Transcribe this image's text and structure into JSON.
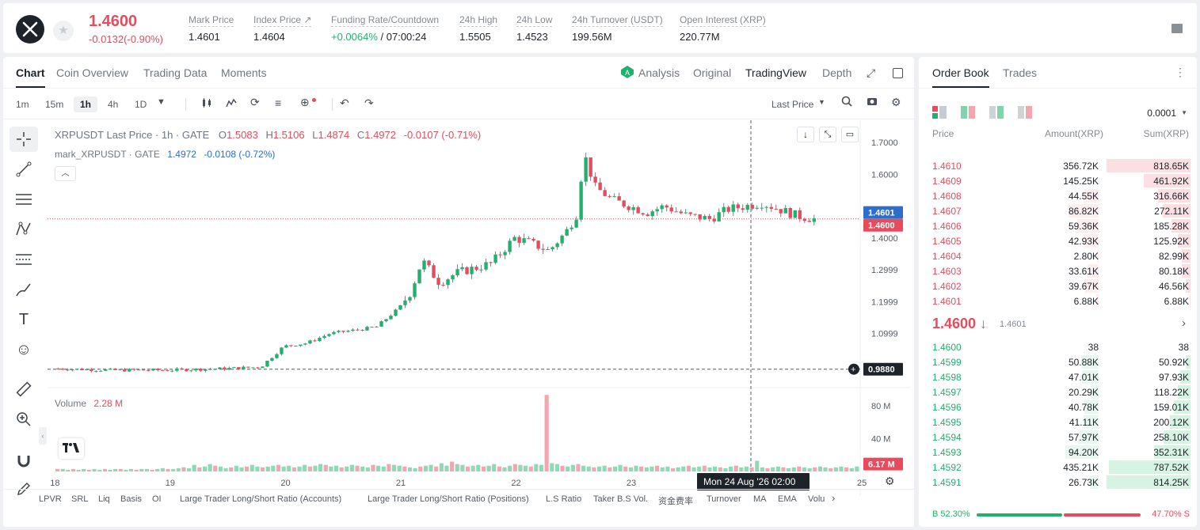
{
  "header": {
    "logo_icon": "xrp-logo-icon",
    "last_price": "1.4600",
    "change": "-0.0132(-0.90%)",
    "stats": [
      {
        "label": "Mark Price",
        "value": "1.4601"
      },
      {
        "label": "Index Price ↗",
        "value": "1.4604"
      },
      {
        "label": "Funding Rate/Countdown",
        "value_green": "+0.0064%",
        "value": " / 07:00:24"
      },
      {
        "label": "24h High",
        "value": "1.5505"
      },
      {
        "label": "24h Low",
        "value": "1.4523"
      },
      {
        "label": "24h Turnover (USDT)",
        "value": "199.56M"
      },
      {
        "label": "Open Interest (XRP)",
        "value": "220.77M"
      }
    ]
  },
  "chart_tabs": [
    "Chart",
    "Coin Overview",
    "Trading Data",
    "Moments"
  ],
  "chart_view_tabs": {
    "analysis": "Analysis",
    "original": "Original",
    "tradingview": "TradingView",
    "depth": "Depth"
  },
  "timeframes": [
    "1m",
    "15m",
    "1h",
    "4h",
    "1D"
  ],
  "price_type": "Last Price",
  "legend": {
    "pair": "XRPUSDT Last Price · 1h · GATE",
    "o_label": "O",
    "o": "1.5083",
    "h_label": "H",
    "h": "1.5106",
    "l_label": "L",
    "l": "1.4874",
    "c_label": "C",
    "c": "1.4972",
    "chg": "-0.0107 (-0.71%)",
    "mark_line": "mark_XRPUSDT · GATE",
    "mark_val": "1.4972",
    "mark_chg": "-0.0108 (-0.72%)",
    "volume_label": "Volume",
    "volume_val": "2.28 M"
  },
  "chart_data": {
    "type": "candlestick",
    "title": "XRPUSDT Last Price · 1h · GATE",
    "y_ticks": [
      "1.7000",
      "1.6000",
      "1.4000",
      "1.2999",
      "1.1999",
      "1.0999"
    ],
    "y_tick_values": [
      1.7,
      1.6,
      1.4,
      1.2999,
      1.1999,
      1.0999
    ],
    "x_ticks": [
      "18",
      "19",
      "20",
      "21",
      "22",
      "23",
      "25"
    ],
    "x_tick_values": [
      18,
      19,
      20,
      21,
      22,
      23,
      25
    ],
    "ylim": [
      0.95,
      1.75
    ],
    "xlim": [
      17.95,
      25
    ],
    "current_price_label": "1.4600",
    "mark_price_label": "1.4601",
    "crosshair_price": "0.9880",
    "crosshair_time": "Mon 24 Aug '26  02:00",
    "volume_ticks": [
      "80 M",
      "40 M"
    ],
    "volume_tick_values": [
      80,
      40
    ],
    "volume_last": "6.17 M",
    "price_path": [
      [
        18.0,
        0.99
      ],
      [
        18.5,
        0.985
      ],
      [
        19.0,
        0.985
      ],
      [
        19.5,
        0.99
      ],
      [
        19.8,
        0.995
      ],
      [
        20.0,
        1.06
      ],
      [
        20.2,
        1.07
      ],
      [
        20.4,
        1.1
      ],
      [
        20.6,
        1.11
      ],
      [
        20.8,
        1.12
      ],
      [
        21.0,
        1.18
      ],
      [
        21.1,
        1.23
      ],
      [
        21.2,
        1.33
      ],
      [
        21.35,
        1.26
      ],
      [
        21.5,
        1.29
      ],
      [
        21.8,
        1.32
      ],
      [
        22.0,
        1.4
      ],
      [
        22.1,
        1.39
      ],
      [
        22.3,
        1.36
      ],
      [
        22.45,
        1.42
      ],
      [
        22.55,
        1.48
      ],
      [
        22.6,
        1.67
      ],
      [
        22.7,
        1.56
      ],
      [
        22.85,
        1.52
      ],
      [
        23.0,
        1.5
      ],
      [
        23.15,
        1.48
      ],
      [
        23.3,
        1.5
      ],
      [
        23.5,
        1.47
      ],
      [
        23.7,
        1.46
      ],
      [
        23.85,
        1.49
      ],
      [
        24.0,
        1.5
      ],
      [
        24.15,
        1.51
      ],
      [
        24.3,
        1.49
      ],
      [
        24.45,
        1.47
      ],
      [
        24.6,
        1.46
      ]
    ],
    "volume_bars": [
      3,
      3,
      2,
      3,
      2,
      3,
      2,
      3,
      2,
      3,
      2,
      3,
      3,
      2,
      3,
      2,
      3,
      3,
      2,
      3,
      4,
      3,
      3,
      4,
      5,
      4,
      8,
      5,
      6,
      9,
      7,
      6,
      4,
      5,
      7,
      5,
      6,
      8,
      6,
      5,
      6,
      7,
      8,
      6,
      7,
      5,
      6,
      8,
      6,
      7,
      9,
      8,
      6,
      7,
      5,
      6,
      8,
      7,
      6,
      5,
      8,
      7,
      6,
      9,
      8,
      7,
      6,
      5,
      4,
      6,
      7,
      8,
      6,
      10,
      7,
      12,
      9,
      8,
      6,
      7,
      8,
      6,
      7,
      9,
      6,
      5,
      7,
      9,
      8,
      7,
      6,
      9,
      8,
      93,
      10,
      9,
      7,
      6,
      8,
      9,
      7,
      6,
      5,
      6,
      7,
      5,
      6,
      8,
      6,
      5,
      7,
      6,
      5,
      6,
      7,
      5,
      6,
      4,
      5,
      6,
      7,
      5,
      6,
      7,
      5,
      6,
      5,
      4,
      6,
      7,
      5,
      6,
      5,
      13,
      5,
      4,
      5,
      6,
      5,
      4,
      5,
      6,
      5,
      4,
      5,
      6,
      5,
      4,
      5,
      6,
      5,
      4,
      6
    ]
  },
  "indicators": [
    "LPVR",
    "SRL",
    "Liq",
    "Basis",
    "OI",
    "Large Trader Long/Short Ratio (Accounts)",
    "Large Trader Long/Short Ratio (Positions)",
    "L.S Ratio",
    "Taker B.S Vol.",
    "资金费率",
    "Turnover",
    "MA",
    "EMA",
    "Volu"
  ],
  "orderbook": {
    "tabs": [
      "Order Book",
      "Trades"
    ],
    "precision": "0.0001",
    "headers": {
      "price": "Price",
      "amount": "Amount(XRP)",
      "sum": "Sum(XRP)"
    },
    "asks": [
      {
        "price": "1.4610",
        "amount": "356.72K",
        "sum": "818.65K",
        "amt_pct": 0.0,
        "sum_pct": 1.0
      },
      {
        "price": "1.4609",
        "amount": "145.25K",
        "sum": "461.92K",
        "amt_pct": 0.0,
        "sum_pct": 0.56
      },
      {
        "price": "1.4608",
        "amount": "44.55K",
        "sum": "316.66K",
        "amt_pct": 0.12,
        "sum_pct": 0.39
      },
      {
        "price": "1.4607",
        "amount": "86.82K",
        "sum": "272.11K",
        "amt_pct": 0.24,
        "sum_pct": 0.33
      },
      {
        "price": "1.4606",
        "amount": "59.36K",
        "sum": "185.28K",
        "amt_pct": 0.17,
        "sum_pct": 0.23
      },
      {
        "price": "1.4605",
        "amount": "42.93K",
        "sum": "125.92K",
        "amt_pct": 0.12,
        "sum_pct": 0.15
      },
      {
        "price": "1.4604",
        "amount": "2.80K",
        "sum": "82.99K",
        "amt_pct": 0.01,
        "sum_pct": 0.1
      },
      {
        "price": "1.4603",
        "amount": "33.61K",
        "sum": "80.18K",
        "amt_pct": 0.09,
        "sum_pct": 0.1
      },
      {
        "price": "1.4602",
        "amount": "39.67K",
        "sum": "46.56K",
        "amt_pct": 0.11,
        "sum_pct": 0.06
      },
      {
        "price": "1.4601",
        "amount": "6.88K",
        "sum": "6.88K",
        "amt_pct": 0.02,
        "sum_pct": 0.01
      }
    ],
    "mid_price": "1.4600 ↓",
    "mid_mark": "1.4601",
    "bids": [
      {
        "price": "1.4600",
        "amount": "38",
        "sum": "38",
        "amt_pct": 0.0,
        "sum_pct": 0.0
      },
      {
        "price": "1.4599",
        "amount": "50.88K",
        "sum": "50.92K",
        "amt_pct": 0.14,
        "sum_pct": 0.06
      },
      {
        "price": "1.4598",
        "amount": "47.01K",
        "sum": "97.93K",
        "amt_pct": 0.13,
        "sum_pct": 0.12
      },
      {
        "price": "1.4597",
        "amount": "20.29K",
        "sum": "118.22K",
        "amt_pct": 0.06,
        "sum_pct": 0.15
      },
      {
        "price": "1.4596",
        "amount": "40.78K",
        "sum": "159.01K",
        "amt_pct": 0.11,
        "sum_pct": 0.2
      },
      {
        "price": "1.4595",
        "amount": "41.11K",
        "sum": "200.12K",
        "amt_pct": 0.12,
        "sum_pct": 0.25
      },
      {
        "price": "1.4594",
        "amount": "57.97K",
        "sum": "258.10K",
        "amt_pct": 0.16,
        "sum_pct": 0.32
      },
      {
        "price": "1.4593",
        "amount": "94.20K",
        "sum": "352.31K",
        "amt_pct": 0.26,
        "sum_pct": 0.43
      },
      {
        "price": "1.4592",
        "amount": "435.21K",
        "sum": "787.52K",
        "amt_pct": 0.0,
        "sum_pct": 0.97
      },
      {
        "price": "1.4591",
        "amount": "26.73K",
        "sum": "814.25K",
        "amt_pct": 0.07,
        "sum_pct": 1.0
      }
    ],
    "buy_ratio": "B 52.30%",
    "sell_ratio": "47.70% S",
    "buy_pct": 0.523
  },
  "colors": {
    "up": "#20b26c",
    "down": "#e84b5c"
  }
}
